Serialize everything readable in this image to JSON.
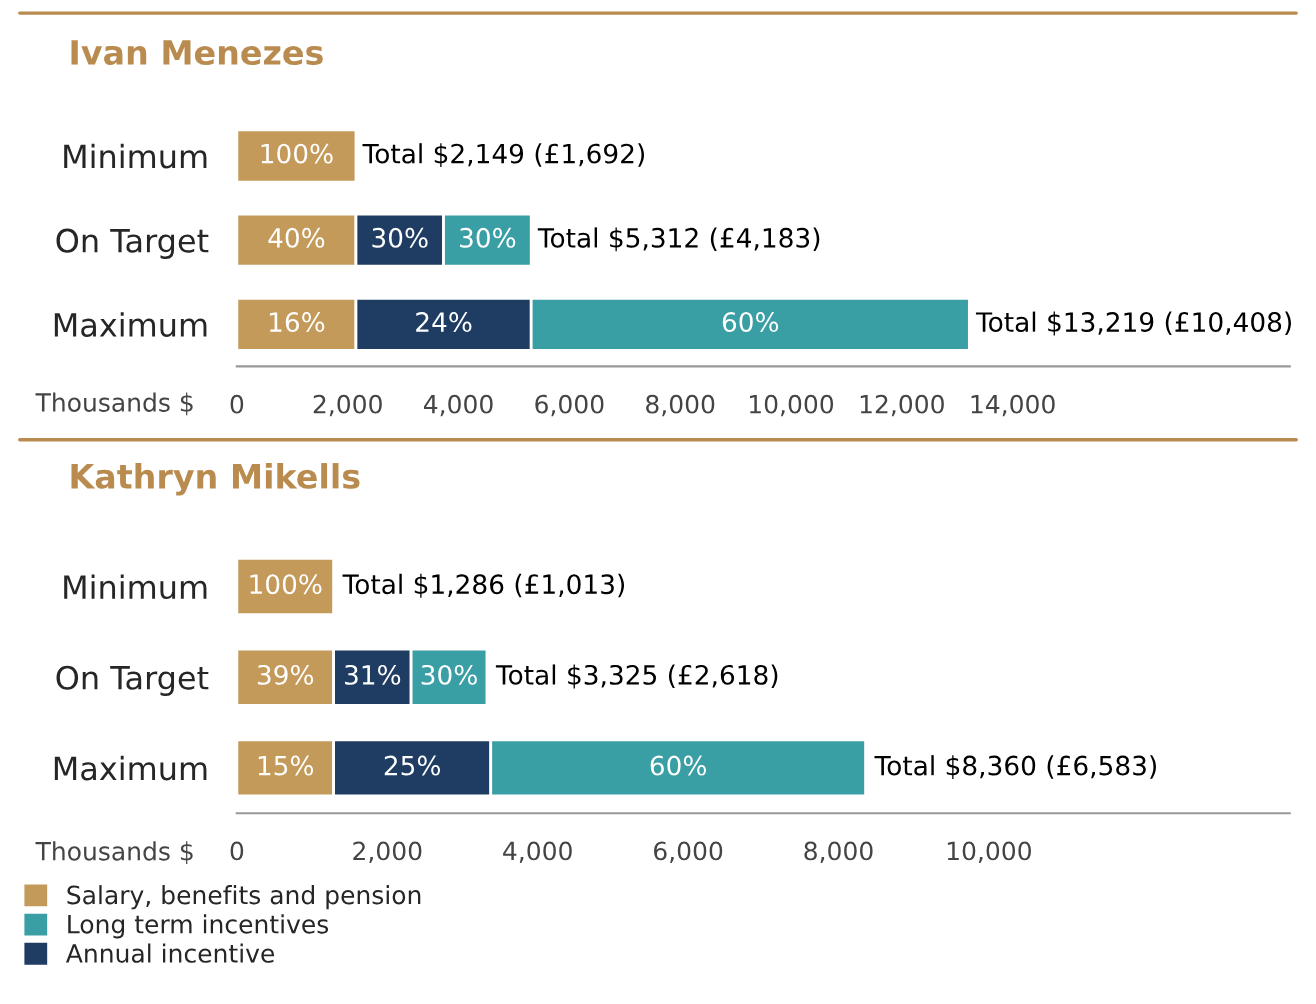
{
  "chart_data": [
    {
      "type": "bar",
      "orientation": "horizontal",
      "stacked": true,
      "title": "Ivan Menezes",
      "xlabel": "Thousands $",
      "categories": [
        "Minimum",
        "On Target",
        "Maximum"
      ],
      "series": [
        {
          "color": "#c49a5a",
          "values": [
            2149,
            2149,
            2149
          ]
        },
        {
          "color": "#1f3d63",
          "values": [
            null,
            1581,
            3163
          ]
        },
        {
          "color": "#3a9ea5",
          "values": [
            null,
            1582,
            7907
          ]
        }
      ],
      "annotations": [
        "100%",
        "40%",
        "30%",
        "30%",
        "16%",
        "24%",
        "60%"
      ],
      "totals": [
        "Total $2,149 (£1,692)",
        "Total $5,312 (£4,183)",
        "Total $13,219 (£10,408)"
      ],
      "xlim": [
        0,
        19000
      ],
      "xticks": [
        0,
        {
          "value": 2000,
          "label": "2,000"
        },
        {
          "value": 4000,
          "label": "4,000"
        },
        {
          "value": 6000,
          "label": "6,000"
        },
        {
          "value": 8000,
          "label": "8,000"
        },
        {
          "value": 10000,
          "label": "10,000"
        },
        {
          "value": 12000,
          "label": "12,000"
        },
        {
          "value": 14000,
          "label": "14,000"
        }
      ],
      "tick_labels": "x",
      "grid": false
    },
    {
      "type": "bar",
      "orientation": "horizontal",
      "stacked": true,
      "title": "Kathryn Mikells",
      "xlabel": "Thousands $",
      "categories": [
        "Minimum",
        "On Target",
        "Maximum"
      ],
      "series": [
        {
          "name": "Salary, benefits and pension",
          "color": "#c49a5a",
          "values": [
            1286,
            1286,
            1286
          ]
        },
        {
          "name": "Annual incentive",
          "color": "#1f3d63",
          "values": [
            null,
            1031,
            2090
          ]
        },
        {
          "name": "Long term incentives",
          "color": "#3a9ea5",
          "values": [
            null,
            1008,
            4984
          ]
        }
      ],
      "annotations": [
        "100%",
        "39%",
        "31%",
        "30%",
        "15%",
        "25%",
        "60%"
      ],
      "totals": [
        "Total $1,286 (£1,013)",
        "Total $3,325 (£2,618)",
        "Total $8,360 (£6,583)"
      ],
      "xlim": [
        0,
        14000
      ],
      "xticks": [
        0,
        {
          "value": 2000,
          "label": "2,000"
        },
        {
          "value": 4000,
          "label": "4,000"
        },
        {
          "value": 6000,
          "label": "6,000"
        },
        {
          "value": 8000,
          "label": "8,000"
        },
        {
          "value": 10000,
          "label": "10,000"
        }
      ],
      "tick_labels": "x",
      "grid": false,
      "legend": "bottom"
    }
  ]
}
